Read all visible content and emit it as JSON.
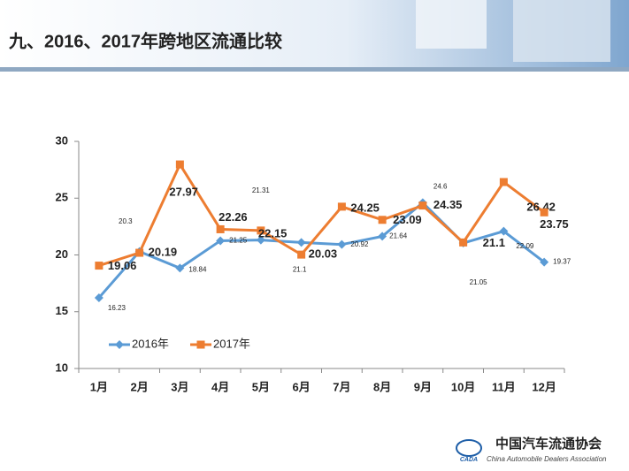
{
  "slide_title": "九、2016、2017年跨地区流通比较",
  "chart_data": {
    "type": "line",
    "categories": [
      "1月",
      "2月",
      "3月",
      "4月",
      "5月",
      "6月",
      "7月",
      "8月",
      "9月",
      "10月",
      "11月",
      "12月"
    ],
    "series": [
      {
        "name": "2016年",
        "color": "#5b9bd5",
        "marker": "diamond",
        "values": [
          16.23,
          20.3,
          18.84,
          21.25,
          21.31,
          21.1,
          20.92,
          21.64,
          24.6,
          21.05,
          22.09,
          19.37
        ]
      },
      {
        "name": "2017年",
        "color": "#ed7d31",
        "marker": "square",
        "values": [
          19.06,
          20.19,
          27.97,
          22.26,
          22.15,
          20.03,
          24.25,
          23.09,
          24.35,
          21.1,
          26.42,
          23.75
        ]
      }
    ],
    "ylim": [
      10,
      30
    ],
    "yticks": [
      10,
      15,
      20,
      25,
      30
    ],
    "grid": false,
    "legend": "bottom-left"
  },
  "logo": {
    "name": "中国汽车流通协会",
    "english": "China Automobile Dealers Association",
    "abbr": "CADA"
  }
}
